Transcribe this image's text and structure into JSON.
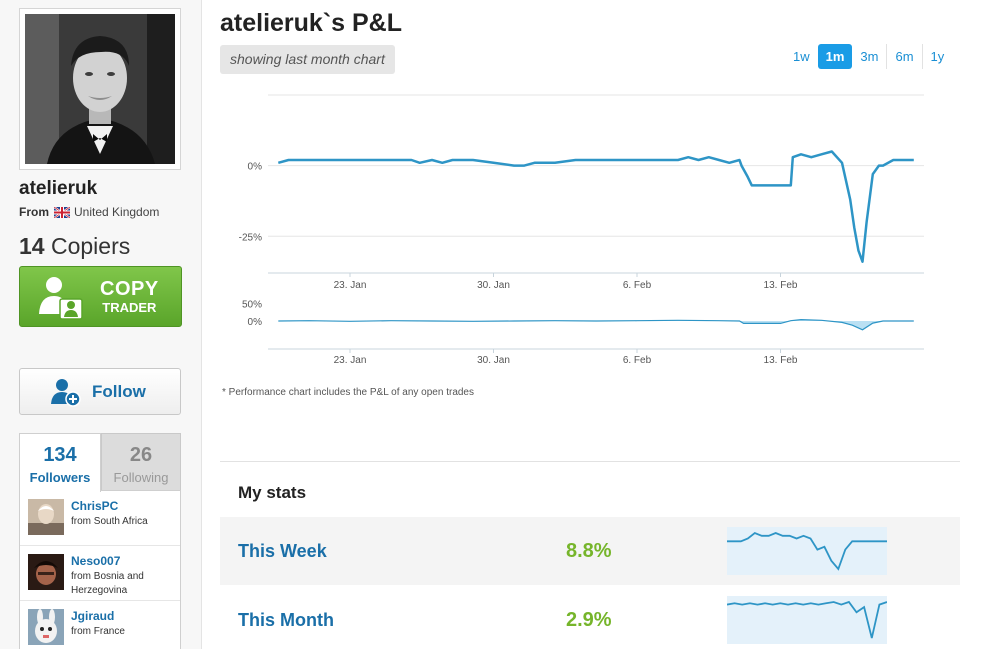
{
  "profile": {
    "username": "atelieruk",
    "from_label": "From",
    "country": "United Kingdom",
    "copiers_count": "14",
    "copiers_label": "Copiers"
  },
  "actions": {
    "copy_big": "COPY",
    "copy_small": "TRADER",
    "follow_label": "Follow"
  },
  "social_tabs": [
    {
      "count": "134",
      "label": "Followers",
      "active": true
    },
    {
      "count": "26",
      "label": "Following",
      "active": false
    }
  ],
  "followers": [
    {
      "name": "ChrisPC",
      "location": "from South Africa"
    },
    {
      "name": "Neso007",
      "location": "from Bosnia and Herzegovina"
    },
    {
      "name": "Jgiraud",
      "location": "from France"
    }
  ],
  "header": {
    "title": "atelieruk`s P&L",
    "range_badge": "showing last month chart"
  },
  "period_tabs": [
    {
      "label": "1w",
      "active": false
    },
    {
      "label": "1m",
      "active": true
    },
    {
      "label": "3m",
      "active": false
    },
    {
      "label": "6m",
      "active": false
    },
    {
      "label": "1y",
      "active": false
    }
  ],
  "colors": {
    "line": "#2e95c6",
    "area_fill": "#a9d8f0",
    "copy_green": "#66b235",
    "link_blue": "#1a6fa8",
    "positive_green": "#76b52b"
  },
  "chart_data": [
    {
      "type": "line",
      "title": "",
      "y_ticks": [
        "0%",
        "-25%"
      ],
      "y_tick_values": [
        0,
        -25
      ],
      "ylim": [
        -38,
        25
      ],
      "x_ticks": [
        "23. Jan",
        "30. Jan",
        "6. Feb",
        "13. Feb"
      ],
      "x_tick_days": [
        4,
        11,
        18,
        25
      ],
      "xlim": [
        0,
        32
      ],
      "grid": true,
      "series": [
        {
          "x": [
            0.5,
            1,
            2,
            3,
            4,
            5,
            6,
            7,
            7.4,
            8,
            8.5,
            9,
            10,
            11,
            12,
            12.5,
            13,
            14,
            15,
            16,
            17,
            18,
            19,
            20,
            20.5,
            21,
            21.5,
            22,
            22.5,
            23,
            23.1,
            23.4,
            23.6,
            24,
            24.5,
            25,
            25.5,
            25.6,
            26,
            26.5,
            27,
            27.5,
            28,
            28.4,
            28.6,
            28.8,
            29,
            29.2,
            29.5,
            29.8,
            30,
            30.5,
            31,
            31.5
          ],
          "y": [
            1,
            2,
            2,
            2,
            2,
            2,
            2,
            2,
            1,
            2,
            1,
            2,
            2,
            1,
            0,
            0,
            1,
            1,
            2,
            2,
            2,
            2,
            2,
            2,
            3,
            2,
            3,
            2,
            1,
            2,
            0,
            -4,
            -7,
            -7,
            -7,
            -7,
            -7,
            3,
            4,
            3,
            4,
            5,
            1,
            -12,
            -22,
            -30,
            -34,
            -20,
            -3,
            0,
            0,
            2,
            2,
            2
          ]
        }
      ]
    },
    {
      "type": "area",
      "title": "",
      "y_ticks": [
        "50%",
        "0%"
      ],
      "y_tick_values": [
        50,
        0
      ],
      "ylim": [
        -80,
        80
      ],
      "x_ticks": [
        "23. Jan",
        "30. Jan",
        "6. Feb",
        "13. Feb"
      ],
      "x_tick_days": [
        4,
        11,
        18,
        25
      ],
      "xlim": [
        0,
        32
      ],
      "series": [
        {
          "x": [
            0.5,
            2,
            4,
            6,
            8,
            10,
            12,
            14,
            16,
            18,
            20,
            22,
            23,
            23.2,
            25,
            25.5,
            26,
            27,
            28,
            28.5,
            29,
            29.5,
            30,
            31.5
          ],
          "y": [
            0,
            1,
            -1,
            1,
            0,
            -1,
            0,
            1,
            0,
            1,
            2,
            1,
            0,
            -7,
            -7,
            1,
            4,
            2,
            -4,
            -12,
            -25,
            -6,
            0,
            0
          ]
        }
      ]
    }
  ],
  "stats": {
    "heading": "My stats",
    "rows": [
      {
        "label": "This Week",
        "value": "8.8%",
        "spark": [
          0,
          0,
          0,
          1,
          3,
          2,
          2,
          3,
          2,
          2,
          1,
          2,
          1,
          -3,
          -2,
          -7,
          -10,
          -3,
          0,
          0,
          0,
          0,
          0,
          0
        ]
      },
      {
        "label": "This Month",
        "value": "2.9%",
        "spark": [
          0,
          0.5,
          0,
          0.5,
          0,
          0.5,
          0,
          0.5,
          0,
          0.5,
          0,
          0.5,
          0,
          0.5,
          1,
          0,
          1,
          -3,
          -1,
          -13,
          0,
          1
        ]
      }
    ]
  },
  "footnote": "* Performance chart includes the P&L of any open trades"
}
